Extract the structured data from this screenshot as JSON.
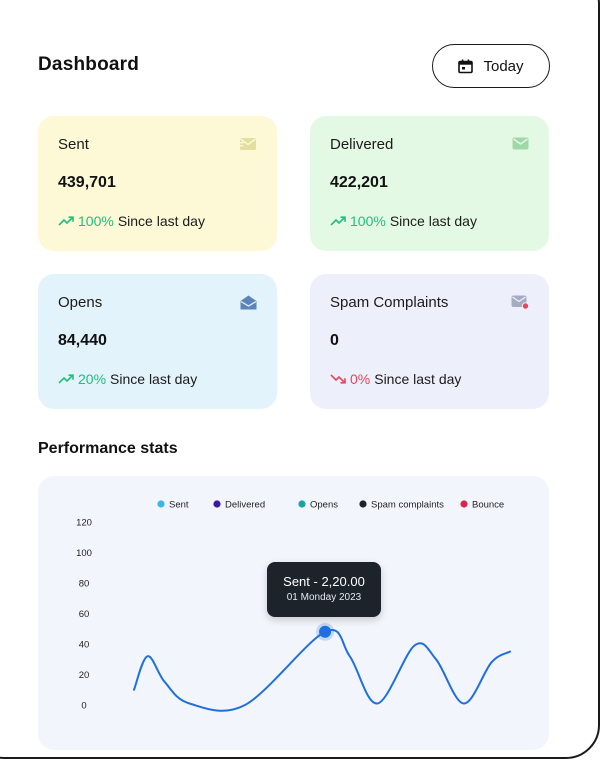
{
  "header": {
    "title": "Dashboard",
    "date_button_label": "Today",
    "date_button_icon": "calendar-icon"
  },
  "cards": [
    {
      "key": "sent",
      "label": "Sent",
      "value": "439,701",
      "trend": "100%",
      "trend_dir": "up",
      "since": "Since last day",
      "icon": "mail-sent-icon",
      "bg": "#fdf8d5"
    },
    {
      "key": "delivered",
      "label": "Delivered",
      "value": "422,201",
      "trend": "100%",
      "trend_dir": "up",
      "since": "Since last day",
      "icon": "mail-delivered-icon",
      "bg": "#e4f9e4"
    },
    {
      "key": "opens",
      "label": "Opens",
      "value": "84,440",
      "trend": "20%",
      "trend_dir": "up",
      "since": "Since last day",
      "icon": "mail-open-icon",
      "bg": "#e3f3fb"
    },
    {
      "key": "spam",
      "label": "Spam Complaints",
      "value": "0",
      "trend": "0%",
      "trend_dir": "down",
      "since": "Since last day",
      "icon": "mail-alert-icon",
      "bg": "#edf0fb"
    }
  ],
  "performance": {
    "title": "Performance stats",
    "tooltip": {
      "title": "Sent - 2,20.00",
      "subtitle": "01 Monday 2023"
    }
  },
  "chart_data": {
    "type": "line",
    "title": "",
    "xlabel": "",
    "ylabel": "",
    "ylim": [
      0,
      120
    ],
    "yticks": [
      "120",
      "100",
      "80",
      "60",
      "40",
      "20",
      "0"
    ],
    "grid": false,
    "legend_position": "top",
    "legend": [
      {
        "name": "Sent",
        "color": "#3ab7e8"
      },
      {
        "name": "Delivered",
        "color": "#3b1aa3"
      },
      {
        "name": "Opens",
        "color": "#1aa3a0"
      },
      {
        "name": "Spam complaints",
        "color": "#1d232b"
      },
      {
        "name": "Bounce",
        "color": "#d9254c"
      }
    ],
    "series": [
      {
        "color": "#1f6fe0",
        "x": [
          0,
          0.22,
          0.5,
          0.9,
          1.8,
          3.1,
          3.5,
          3.95,
          4.55,
          4.9,
          5.35,
          5.8,
          6.1
        ],
        "values": [
          10,
          32,
          15,
          1,
          0,
          48,
          32,
          1,
          39,
          30,
          1,
          28,
          35
        ]
      }
    ],
    "highlight": {
      "x": 3.1,
      "y": 48
    }
  },
  "colors": {
    "trend_up": "#1fbf7a",
    "trend_down": "#e8455c",
    "line": "#1f6fe0"
  }
}
